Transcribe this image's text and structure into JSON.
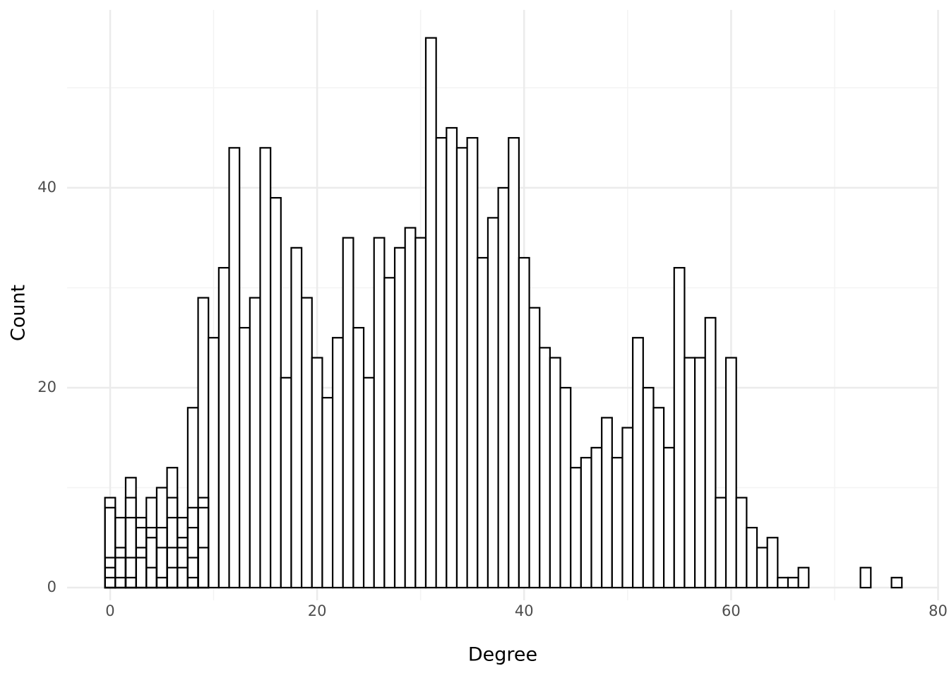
{
  "chart_data": {
    "type": "histogram",
    "x_label": "Degree",
    "y_label": "Count",
    "bins": [
      -0.5,
      0.5,
      1.5,
      2.5,
      3.5,
      4.5,
      5.5,
      6.5,
      7.5,
      8.5,
      9.5,
      10.5,
      11.5,
      12.5,
      13.5,
      14.5,
      15.5,
      16.5,
      17.5,
      18.5,
      19.5,
      20.5,
      21.5,
      22.5,
      23.5,
      24.5,
      25.5,
      26.5,
      27.5,
      28.5,
      29.5,
      30.5,
      31.5,
      32.5,
      33.5,
      34.5,
      35.5,
      36.5,
      37.5,
      38.5,
      39.5,
      40.5,
      41.5,
      42.5,
      43.5,
      44.5,
      45.5,
      46.5,
      47.5,
      48.5,
      49.5,
      50.5,
      51.5,
      52.5,
      53.5,
      54.5,
      55.5,
      56.5,
      57.5,
      58.5,
      59.5,
      60.5,
      61.5,
      62.5,
      63.5,
      64.5,
      65.5,
      66.5,
      67.5,
      68.5,
      69.5,
      70.5,
      71.5,
      72.5,
      73.5,
      74.5,
      75.5,
      76.5
    ],
    "series": [
      {
        "color": "#000000",
        "values": [
          9,
          7,
          11,
          7,
          9,
          10,
          12,
          7,
          18,
          29,
          25,
          32,
          44,
          26,
          29,
          44,
          39,
          21,
          34,
          29,
          23,
          19,
          25,
          35,
          26,
          21,
          35,
          31,
          34,
          36,
          35,
          55,
          45,
          46,
          44,
          45,
          33,
          37,
          40,
          45,
          33,
          28,
          24,
          23,
          20,
          12,
          13,
          14,
          17,
          13,
          16,
          25,
          20,
          18,
          14,
          32,
          23,
          23,
          27,
          9,
          23,
          9,
          6,
          4,
          5,
          1,
          1,
          2,
          0,
          0,
          0,
          0,
          0,
          2,
          0,
          0,
          1
        ]
      },
      {
        "color": "#000000",
        "values": [
          8,
          4,
          9,
          6,
          6,
          6,
          9,
          5,
          8,
          9
        ]
      },
      {
        "color": "#000000",
        "values": [
          3,
          3,
          7,
          4,
          5,
          4,
          7,
          4,
          6,
          8
        ]
      },
      {
        "color": "#000000",
        "values": [
          2,
          1,
          3,
          3,
          2,
          1,
          4,
          2,
          3,
          4
        ]
      },
      {
        "color": "#000000",
        "values": [
          1,
          null,
          1,
          null,
          null,
          null,
          2,
          null,
          1,
          null
        ]
      }
    ],
    "xlim": [
      -4.16,
      80.1
    ],
    "ylim": [
      -1.27,
      57.8
    ],
    "xticks": [
      0,
      20,
      40,
      60,
      80
    ],
    "yticks": [
      0,
      20,
      40
    ],
    "xminor": [
      10,
      30,
      50,
      70
    ],
    "yminor": [
      10,
      30,
      50
    ],
    "grid": true
  }
}
